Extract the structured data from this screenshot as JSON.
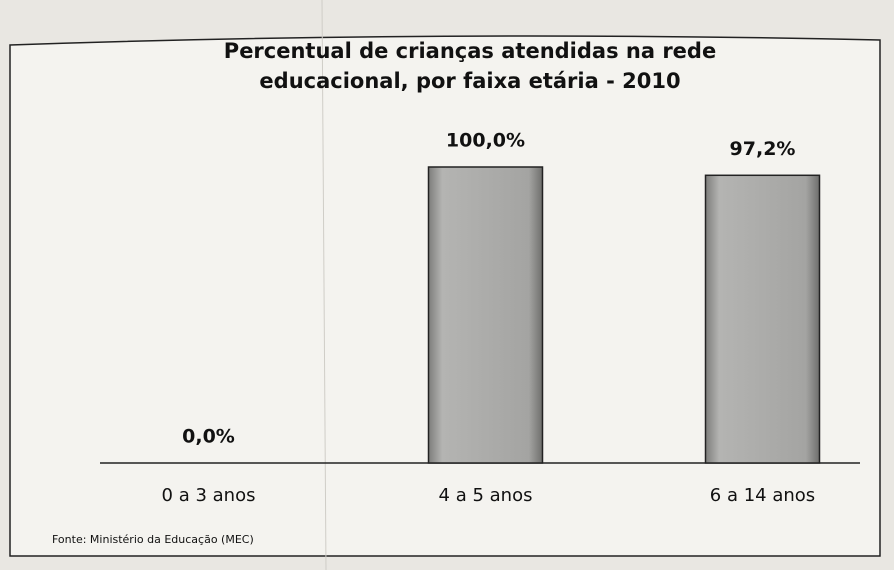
{
  "chart_data": {
    "type": "bar",
    "title": "Percentual de crianças atendidas na rede educacional, por faixa etária - 2010",
    "categories": [
      "0 a 3 anos",
      "4 a 5 anos",
      "6 a 14 anos"
    ],
    "values": [
      0,
      100,
      97.2
    ],
    "value_labels": [
      "0,0%",
      "100,0%",
      "97,2%"
    ],
    "color": "#a9a9a7",
    "source": "Fonte: Ministério da Educação (MEC)"
  }
}
